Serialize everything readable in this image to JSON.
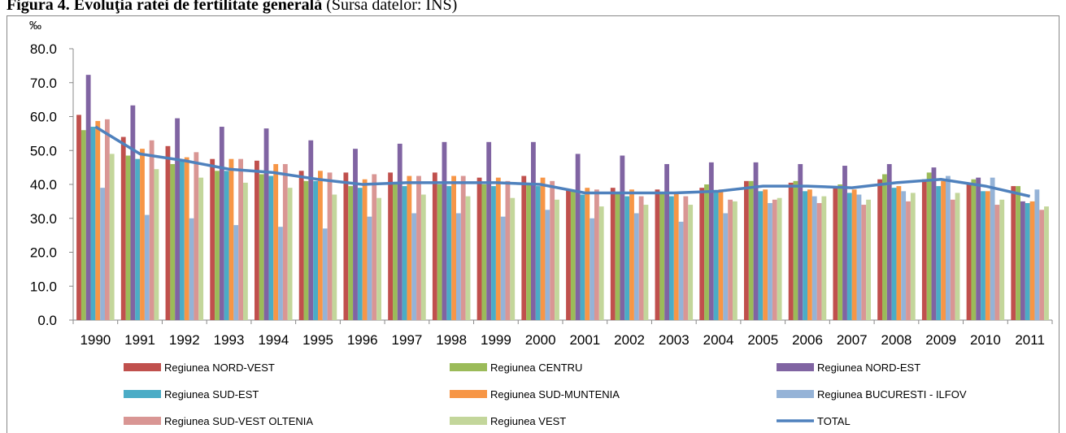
{
  "chart_data": {
    "type": "bar",
    "title": "Figura 4. Evoluţia ratei de fertilitate generală",
    "subtitle": "(Sursa datelor: INS)",
    "y_label": "‰",
    "categories": [
      "1990",
      "1991",
      "1992",
      "1993",
      "1994",
      "1995",
      "1996",
      "1997",
      "1998",
      "1999",
      "2000",
      "2001",
      "2002",
      "2003",
      "2004",
      "2005",
      "2006",
      "2007",
      "2008",
      "2009",
      "2010",
      "2011"
    ],
    "series": [
      {
        "name": "Regiunea NORD-VEST",
        "color": "#c0504d",
        "values": [
          60.5,
          54,
          51.3,
          47.5,
          47,
          44,
          43.5,
          43.5,
          43.5,
          42,
          42.5,
          38.5,
          39,
          38.5,
          39,
          41,
          40.5,
          39.5,
          41.5,
          41.5,
          40,
          39.5
        ]
      },
      {
        "name": "Regiunea CENTRU",
        "color": "#9bbb59",
        "values": [
          56,
          48.5,
          46,
          44,
          43,
          41,
          39.5,
          40,
          40,
          40,
          40,
          38,
          37.5,
          37.5,
          40,
          41,
          41,
          40,
          43,
          43.5,
          41.5,
          39.5
        ]
      },
      {
        "name": "Regiunea NORD-EST",
        "color": "#8064a2",
        "values": [
          72.3,
          63.3,
          59.5,
          57,
          56.5,
          53,
          50.5,
          52,
          52.5,
          52.5,
          52.5,
          49,
          48.5,
          46,
          46.5,
          46.5,
          46,
          45.5,
          46,
          45,
          42,
          35
        ]
      },
      {
        "name": "Regiunea SUD-EST",
        "color": "#4bacc6",
        "values": [
          57,
          47.5,
          47,
          44,
          42.5,
          41,
          39,
          39.5,
          39.5,
          39.5,
          39.5,
          37,
          36.5,
          36.5,
          38,
          38,
          38,
          37.5,
          39,
          39.5,
          38,
          34.5
        ]
      },
      {
        "name": "Regiunea SUD-MUNTENIA",
        "color": "#f79646",
        "values": [
          58.7,
          50.5,
          48,
          47.5,
          46,
          44,
          41.5,
          42.5,
          42.5,
          42,
          42,
          39,
          38.5,
          37.5,
          38.5,
          38.5,
          38.5,
          38.5,
          39.5,
          41,
          38,
          35
        ]
      },
      {
        "name": "Regiunea BUCURESTI - ILFOV",
        "color": "#95b3d7",
        "values": [
          39,
          31,
          30,
          28,
          27.5,
          27,
          30.5,
          31.5,
          31.5,
          30.5,
          32.5,
          30,
          31.5,
          29,
          31.5,
          34.5,
          36.5,
          37,
          38,
          42.5,
          42,
          38.5
        ]
      },
      {
        "name": "Regiunea SUD-VEST OLTENIA",
        "color": "#d99694",
        "values": [
          59.2,
          53,
          49.5,
          47.5,
          46,
          43.5,
          43,
          42.5,
          42.5,
          41,
          41,
          38.5,
          36.5,
          36.5,
          35.5,
          35.5,
          34.5,
          34,
          35,
          35.5,
          34,
          32.5
        ]
      },
      {
        "name": "Regiunea VEST",
        "color": "#c3d69b",
        "values": [
          49,
          44.5,
          42,
          40.5,
          39,
          37,
          36,
          37,
          36.5,
          36,
          35.5,
          33.5,
          34,
          34,
          35,
          36,
          36.5,
          35.5,
          37.5,
          37.5,
          35.5,
          33.5
        ]
      },
      {
        "name": "TOTAL",
        "type": "line",
        "color": "#4f81bd",
        "values": [
          57,
          49,
          47,
          44.5,
          43.5,
          41.5,
          40,
          40.5,
          40.5,
          40.5,
          40,
          37.5,
          37.5,
          37.5,
          38,
          39.5,
          39.5,
          39,
          40.5,
          41.5,
          39.5,
          36.5
        ]
      }
    ],
    "ylim": [
      0,
      80
    ],
    "yticks": [
      {
        "value": 0,
        "label": "0.0"
      },
      {
        "value": 10,
        "label": "10.0"
      },
      {
        "value": 20,
        "label": "20.0"
      },
      {
        "value": 30,
        "label": "30.0"
      },
      {
        "value": 40,
        "label": "40.0"
      },
      {
        "value": 50,
        "label": "50.0"
      },
      {
        "value": 60,
        "label": "60.0"
      },
      {
        "value": 70,
        "label": "70.0"
      },
      {
        "value": 80,
        "label": "80.0"
      }
    ],
    "grid": false,
    "legend": "bottom"
  }
}
